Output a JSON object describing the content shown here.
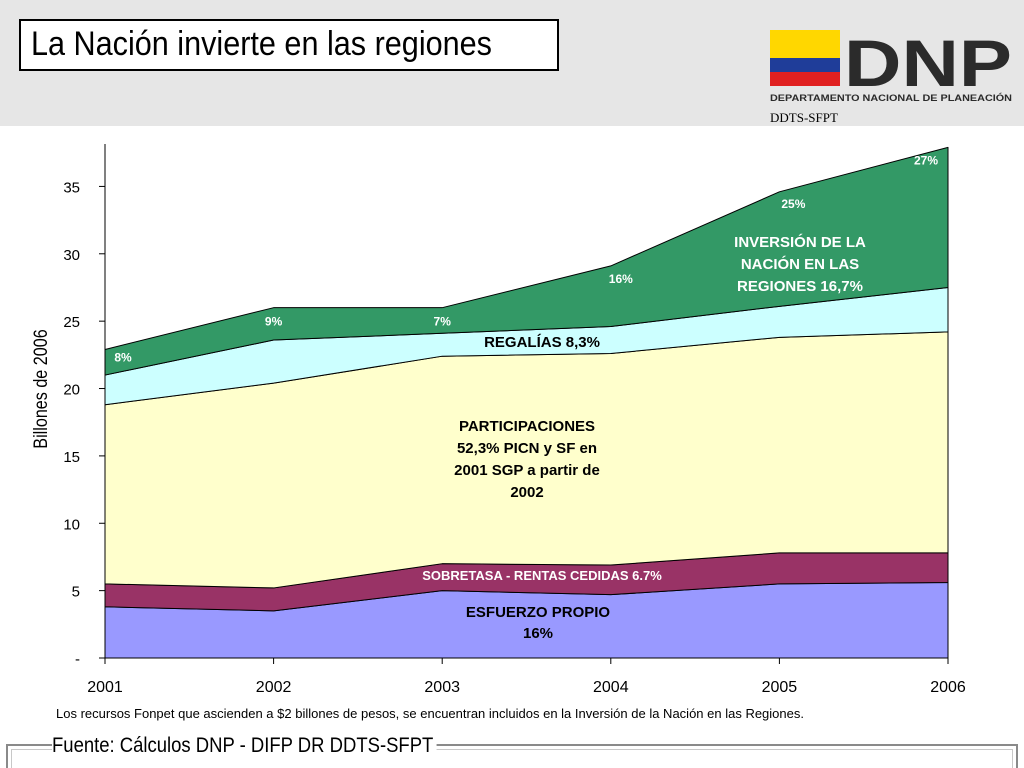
{
  "header": {
    "title": "La Nación invierte en las regiones",
    "logo_text": "DNP",
    "logo_subtitle": "DEPARTAMENTO NACIONAL DE PLANEACIÓN",
    "unit": "DDTS-SFPT"
  },
  "colors": {
    "esfuerzo": "#9999ff",
    "sobretasa": "#993366",
    "participaciones": "#ffffcc",
    "regalias": "#ccffff",
    "inversion": "#339966",
    "flag_yellow": "#ffd700",
    "flag_blue": "#1f3d99",
    "flag_red": "#e02020"
  },
  "chart_data": {
    "type": "area",
    "stacked": true,
    "ylabel": "Billones de 2006",
    "xlabel": "",
    "x": [
      "2001",
      "2002",
      "2003",
      "2004",
      "2005",
      "2006"
    ],
    "ylim": [
      0,
      38
    ],
    "yticks": [
      0,
      5,
      10,
      15,
      20,
      25,
      30,
      35
    ],
    "ytick_labels": [
      "-",
      "5",
      "10",
      "15",
      "20",
      "25",
      "30",
      "35"
    ],
    "series": [
      {
        "key": "esfuerzo",
        "values": [
          3.8,
          3.5,
          5.0,
          4.7,
          5.5,
          5.6
        ]
      },
      {
        "key": "sobretasa",
        "values": [
          1.7,
          1.7,
          2.0,
          2.2,
          2.3,
          2.2
        ]
      },
      {
        "key": "participaciones",
        "values": [
          13.3,
          15.2,
          15.4,
          15.7,
          16.0,
          16.4
        ]
      },
      {
        "key": "regalias",
        "values": [
          2.2,
          3.2,
          1.7,
          2.0,
          2.3,
          3.3
        ]
      },
      {
        "key": "inversion",
        "values": [
          1.9,
          2.4,
          1.9,
          4.5,
          8.5,
          10.4
        ]
      }
    ],
    "inversion_pct_labels": [
      "8%",
      "9%",
      "7%",
      "16%",
      "25%",
      "27%"
    ],
    "annotations": {
      "esfuerzo": [
        "ESFUERZO PROPIO",
        "16%"
      ],
      "sobretasa": [
        "SOBRETASA - RENTAS CEDIDAS 6.7%"
      ],
      "participaciones": [
        "PARTICIPACIONES",
        "52,3% PICN y SF en",
        "2001 SGP a partir de",
        "2002"
      ],
      "regalias": [
        "REGALÍAS 8,3%"
      ],
      "inversion": [
        "INVERSIÓN DE LA",
        "NACIÓN EN LAS",
        "REGIONES 16,7%"
      ]
    }
  },
  "footer": {
    "note": "Los recursos Fonpet que ascienden a $2 billones de pesos, se encuentran incluidos en la Inversión de la Nación en las Regiones.",
    "source": "Fuente: Cálculos DNP - DIFP DR DDTS-SFPT"
  }
}
